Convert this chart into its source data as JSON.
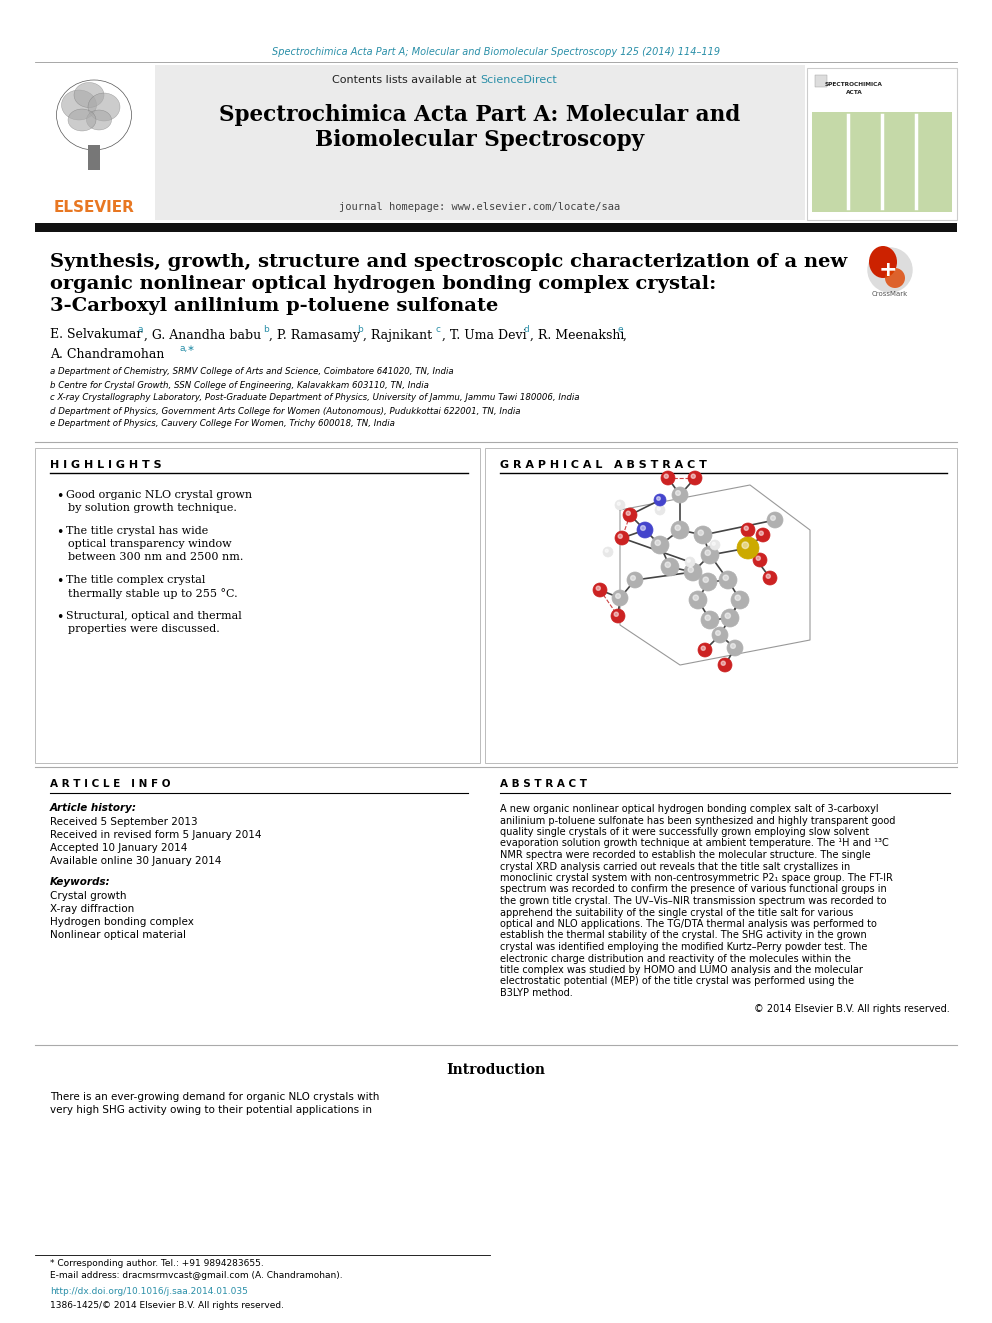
{
  "page_bg": "#ffffff",
  "top_journal_line": "Spectrochimica Acta Part A; Molecular and Biomolecular Spectroscopy 125 (2014) 114–119",
  "top_journal_color": "#2a8fa8",
  "header_bg": "#e8e8e8",
  "science_direct_color": "#2a8fa8",
  "journal_title_line1": "Spectrochimica Acta Part A: Molecular and",
  "journal_title_line2": "Biomolecular Spectroscopy",
  "journal_homepage": "journal homepage: www.elsevier.com/locate/saa",
  "elsevier_color": "#e87722",
  "article_title_line1": "Synthesis, growth, structure and spectroscopic characterization of a new",
  "article_title_line2": "organic nonlinear optical hydrogen bonding complex crystal:",
  "article_title_line3": "3-Carboxyl anilinium p-toluene sulfonate",
  "affil_a": "a Department of Chemistry, SRMV College of Arts and Science, Coimbatore 641020, TN, India",
  "affil_b": "b Centre for Crystal Growth, SSN College of Engineering, Kalavakkam 603110, TN, India",
  "affil_c": "c X-ray Crystallography Laboratory, Post-Graduate Department of Physics, University of Jammu, Jammu Tawi 180006, India",
  "affil_d": "d Department of Physics, Government Arts College for Women (Autonomous), Pudukkottai 622001, TN, India",
  "affil_e": "e Department of Physics, Cauvery College For Women, Trichy 600018, TN, India",
  "highlights": [
    "Good organic NLO crystal grown by solution growth technique.",
    "The title crystal has wide optical transparency window between 300 nm and 2500 nm.",
    "The title complex crystal thermally stable up to 255 °C.",
    "Structural, optical and thermal properties were discussed."
  ],
  "received": "Received 5 September 2013",
  "received_revised": "Received in revised form 5 January 2014",
  "accepted": "Accepted 10 January 2014",
  "available": "Available online 30 January 2014",
  "keyword1": "Crystal growth",
  "keyword2": "X-ray diffraction",
  "keyword3": "Hydrogen bonding complex",
  "keyword4": "Nonlinear optical material",
  "abstract_text": "A new organic nonlinear optical hydrogen bonding complex salt of 3-carboxyl anilinium p-toluene sulfonate has been synthesized and highly transparent good quality single crystals of it were successfully grown employing slow solvent evaporation solution growth technique at ambient temperature. The ¹H and ¹³C NMR spectra were recorded to establish the molecular structure. The single crystal XRD analysis carried out reveals that the title salt crystallizes in monoclinic crystal system with non-centrosymmetric P2₁ space group. The FT-IR spectrum was recorded to confirm the presence of various functional groups in the grown title crystal. The UV–Vis–NIR transmission spectrum was recorded to apprehend the suitability of the single crystal of the title salt for various optical and NLO applications. The TG/DTA thermal analysis was performed to establish the thermal stability of the crystal. The SHG activity in the grown crystal was identified employing the modified Kurtz–Perry powder test. The electronic charge distribution and reactivity of the molecules within the title complex was studied by HOMO and LUMO analysis and the molecular electrostatic potential (MEP) of the title crystal was performed using the B3LYP method.",
  "copyright": "© 2014 Elsevier B.V. All rights reserved.",
  "intro_title": "Introduction",
  "intro_text1": "There is an ever-growing demand for organic NLO crystals with",
  "intro_text2": "very high SHG activity owing to their potential applications in",
  "footer_corr": "* Corresponding author. Tel.: +91 9894283655.",
  "footer_email": "E-mail address: dracmsrmvcast@gmail.com (A. Chandramohan).",
  "footer_doi": "http://dx.doi.org/10.1016/j.saa.2014.01.035",
  "footer_issn": "1386-1425/© 2014 Elsevier B.V. All rights reserved."
}
